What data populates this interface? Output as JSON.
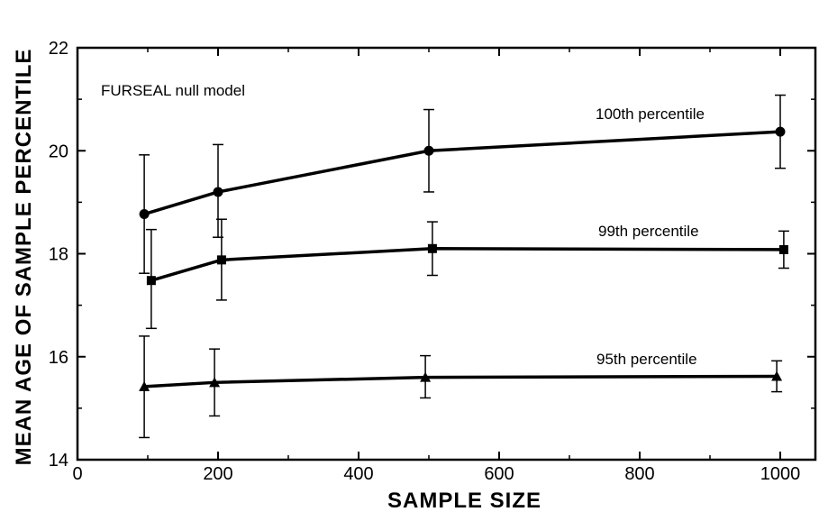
{
  "chart_data": {
    "type": "line",
    "title": "",
    "xlabel": "SAMPLE  SIZE",
    "ylabel": "MEAN  AGE  OF  SAMPLE  PERCENTILE",
    "xlim": [
      0,
      1050
    ],
    "ylim": [
      14,
      22
    ],
    "xticks": [
      0,
      200,
      400,
      600,
      800,
      1000
    ],
    "yticks": [
      14,
      16,
      18,
      20,
      22
    ],
    "grid": false,
    "legend": "none",
    "annotation": "FURSEAL  null  model",
    "series": [
      {
        "name": "100th  percentile",
        "marker": "circle",
        "x": [
          95,
          200,
          500,
          1000
        ],
        "y": [
          18.77,
          19.2,
          20.0,
          20.37
        ],
        "err_low": [
          17.62,
          18.32,
          19.2,
          19.66
        ],
        "err_high": [
          19.92,
          20.12,
          20.8,
          21.08
        ]
      },
      {
        "name": "99th  percentile",
        "marker": "square",
        "x": [
          105,
          205,
          505,
          1005
        ],
        "y": [
          17.48,
          17.88,
          18.1,
          18.08
        ],
        "err_low": [
          16.55,
          17.1,
          17.58,
          17.72
        ],
        "err_high": [
          18.47,
          18.67,
          18.62,
          18.44
        ]
      },
      {
        "name": "95th  percentile",
        "marker": "triangle",
        "x": [
          95,
          195,
          495,
          995
        ],
        "y": [
          15.42,
          15.5,
          15.6,
          15.62
        ],
        "err_low": [
          14.43,
          14.85,
          15.2,
          15.32
        ],
        "err_high": [
          16.4,
          16.15,
          16.02,
          15.92
        ]
      }
    ],
    "colors": {
      "line": "#000000",
      "background": "#ffffff"
    }
  }
}
